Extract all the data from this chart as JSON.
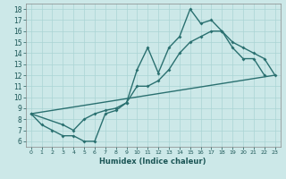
{
  "bg_color": "#cce8e8",
  "grid_color": "#aad4d4",
  "line_color": "#2a7070",
  "xlim": [
    -0.5,
    23.5
  ],
  "ylim": [
    5.5,
    18.5
  ],
  "xlabel": "Humidex (Indice chaleur)",
  "xlabel_fontsize": 6.0,
  "tick_fontsize_x": 4.5,
  "tick_fontsize_y": 5.5,
  "linewidth": 1.0,
  "marker": "D",
  "marker_size": 2.0,
  "curve1_x": [
    0,
    1,
    2,
    3,
    4,
    5,
    6,
    7,
    8,
    9,
    10,
    11,
    12,
    13,
    14,
    15,
    16,
    17,
    18,
    19,
    20,
    21,
    22
  ],
  "curve1_y": [
    8.5,
    7.5,
    7.0,
    6.5,
    6.5,
    6.0,
    6.0,
    8.5,
    8.8,
    9.5,
    12.5,
    14.5,
    12.2,
    14.5,
    15.5,
    18.0,
    16.7,
    17.0,
    16.0,
    14.5,
    13.5,
    13.5,
    12.0
  ],
  "curve2_x": [
    0,
    3,
    4,
    5,
    6,
    7,
    8,
    9,
    10,
    11,
    12,
    13,
    14,
    15,
    16,
    17,
    18,
    19,
    20,
    21,
    22,
    23
  ],
  "curve2_y": [
    8.5,
    7.5,
    7.0,
    8.0,
    8.5,
    8.8,
    9.0,
    9.5,
    11.0,
    11.0,
    11.5,
    12.5,
    14.0,
    15.0,
    15.5,
    16.0,
    16.0,
    15.0,
    14.5,
    14.0,
    13.5,
    12.0
  ],
  "curve3_x": [
    0,
    23
  ],
  "curve3_y": [
    8.5,
    12.0
  ]
}
